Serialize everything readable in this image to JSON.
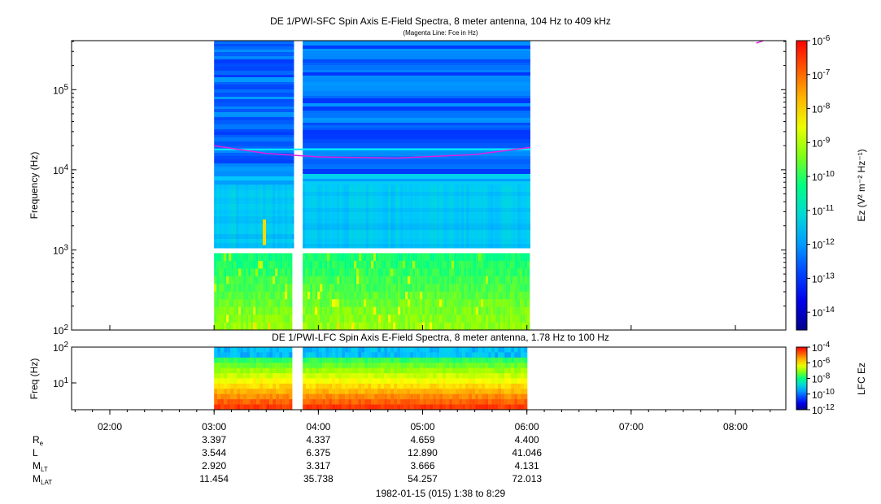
{
  "chart_data": [
    {
      "type": "heatmap",
      "title": "DE 1/PWI-SFC  Spin Axis E-Field Spectra, 8 meter antenna, 104 Hz to 409 kHz",
      "subtitle": "(Magenta Line: Fce in Hz)",
      "ylabel": "Frequency (Hz)",
      "yscale": "log",
      "ylim": [
        100,
        409000
      ],
      "yticks": [
        {
          "base": "10",
          "exp": "2"
        },
        {
          "base": "10",
          "exp": "3"
        },
        {
          "base": "10",
          "exp": "4"
        },
        {
          "base": "10",
          "exp": "5"
        }
      ],
      "data_coverage": [
        {
          "start": "03:00",
          "end": "03:46"
        },
        {
          "start": "03:51",
          "end": "06:02"
        }
      ],
      "gap_frequency_hz": 1000,
      "colorbar": {
        "label": "Ez (V² m⁻² Hz⁻¹)",
        "scale": "log",
        "range": [
          3e-15,
          1e-06
        ],
        "ticks": [
          {
            "base": "10",
            "exp": "-6"
          },
          {
            "base": "10",
            "exp": "-7"
          },
          {
            "base": "10",
            "exp": "-8"
          },
          {
            "base": "10",
            "exp": "-9"
          },
          {
            "base": "10",
            "exp": "-10"
          },
          {
            "base": "10",
            "exp": "-11"
          },
          {
            "base": "10",
            "exp": "-12"
          },
          {
            "base": "10",
            "exp": "-13"
          },
          {
            "base": "10",
            "exp": "-14"
          }
        ]
      },
      "fce_line": {
        "color": "#e020e0",
        "points": [
          {
            "t": "03:00",
            "hz": 20000
          },
          {
            "t": "03:30",
            "hz": 16000
          },
          {
            "t": "04:00",
            "hz": 14500
          },
          {
            "t": "04:45",
            "hz": 14000
          },
          {
            "t": "05:30",
            "hz": 15500
          },
          {
            "t": "06:02",
            "hz": 19000
          }
        ],
        "late_points": [
          {
            "t": "08:12",
            "hz": 380000
          },
          {
            "t": "08:16",
            "hz": 430000
          }
        ]
      }
    },
    {
      "type": "heatmap",
      "title": "DE 1/PWI-LFC  Spin Axis E-Field Spectra, 8 meter antenna, 1.78 Hz to 100 Hz",
      "ylabel": "Freq (Hz)",
      "yscale": "log",
      "ylim": [
        1.78,
        100
      ],
      "yticks": [
        {
          "base": "10",
          "exp": "1"
        },
        {
          "base": "10",
          "exp": "2"
        }
      ],
      "data_coverage": [
        {
          "start": "03:00",
          "end": "03:46"
        },
        {
          "start": "03:51",
          "end": "06:02"
        }
      ],
      "colorbar": {
        "label": "LFC Ez",
        "scale": "log",
        "range": [
          1e-12,
          0.0001
        ],
        "ticks": [
          {
            "base": "10",
            "exp": "-4"
          },
          {
            "base": "10",
            "exp": "-6"
          },
          {
            "base": "10",
            "exp": "-8"
          },
          {
            "base": "10",
            "exp": "-10"
          },
          {
            "base": "10",
            "exp": "-12"
          }
        ]
      }
    }
  ],
  "time_axis": {
    "labels": [
      "02:00",
      "03:00",
      "04:00",
      "05:00",
      "06:00",
      "07:00",
      "08:00"
    ],
    "range": [
      "01:38",
      "08:29"
    ]
  },
  "ephemeris": {
    "labels": [
      {
        "main": "R",
        "sub": "e"
      },
      {
        "main": "L",
        "sub": ""
      },
      {
        "main": "M",
        "sub": "LT"
      },
      {
        "main": "M",
        "sub": "LAT"
      }
    ],
    "columns": [
      {
        "time": "03:00",
        "values": [
          "3.397",
          "3.544",
          "2.920",
          "11.454"
        ]
      },
      {
        "time": "04:00",
        "values": [
          "4.337",
          "6.375",
          "3.317",
          "35.738"
        ]
      },
      {
        "time": "05:00",
        "values": [
          "4.659",
          "12.890",
          "3.666",
          "54.257"
        ]
      },
      {
        "time": "06:00",
        "values": [
          "4.400",
          "41.046",
          "4.131",
          "72.013"
        ]
      }
    ]
  },
  "footer": "1982-01-15 (015) 1:38 to 8:29"
}
